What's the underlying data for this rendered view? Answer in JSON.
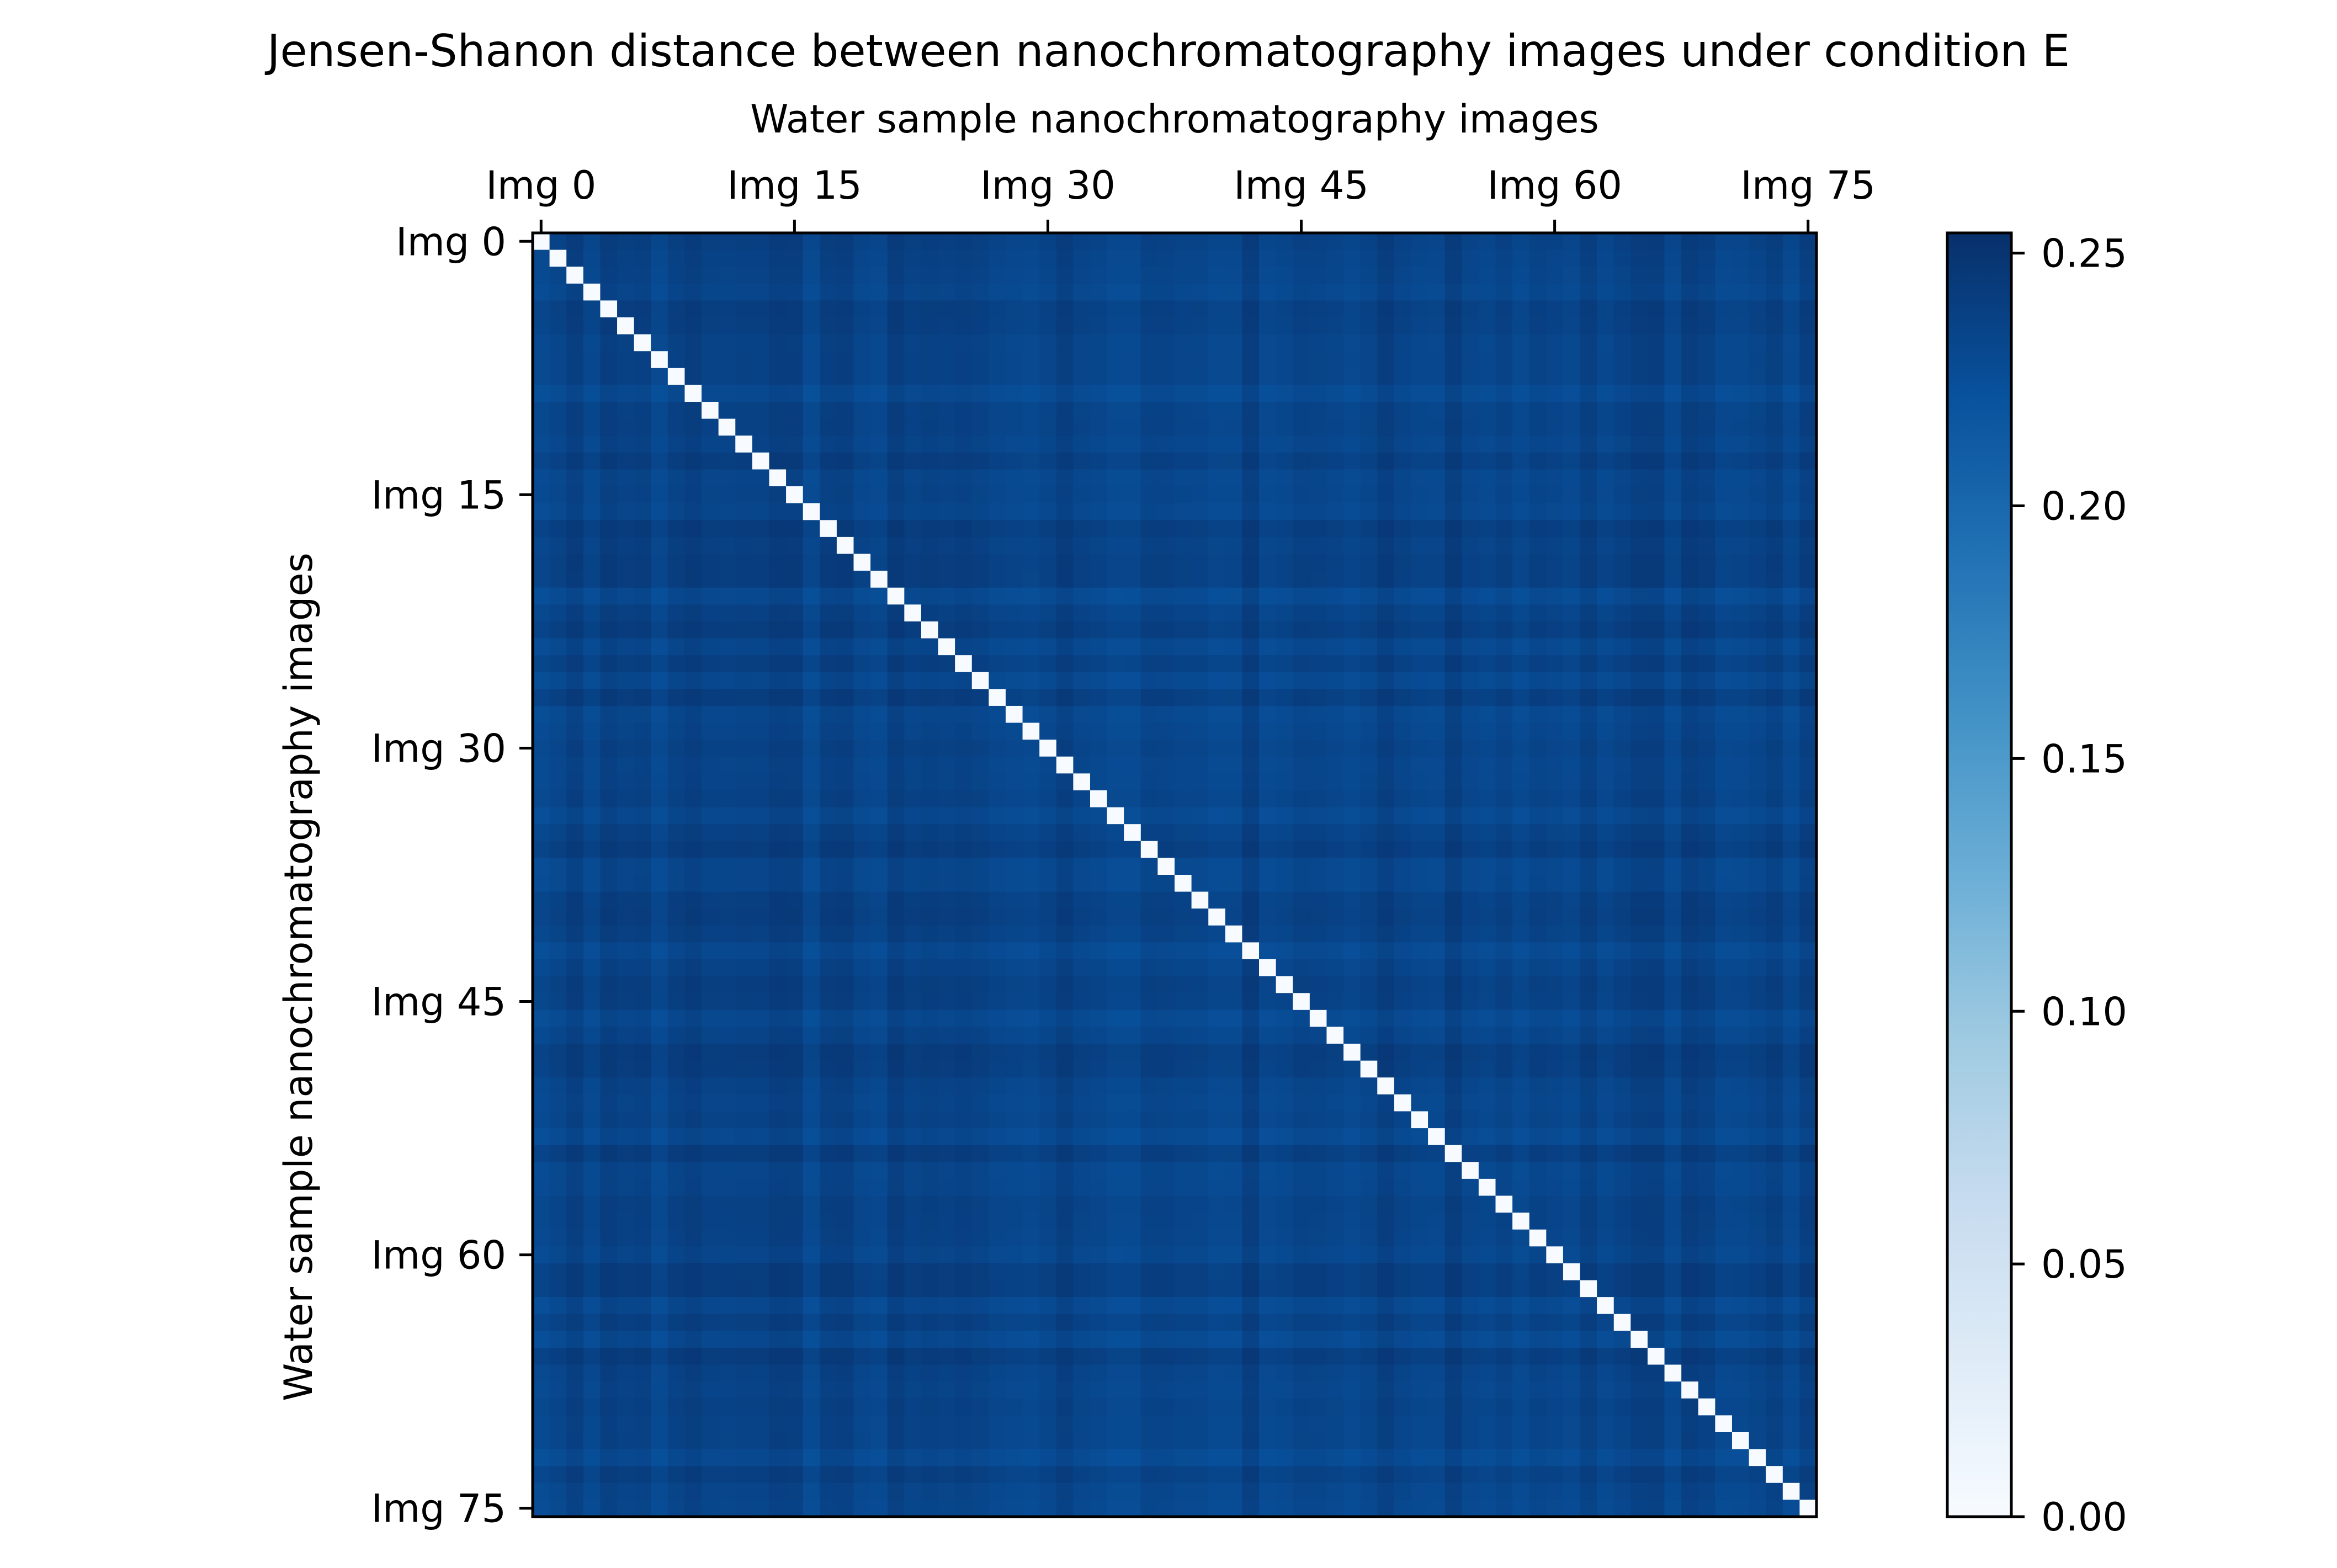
{
  "chart_data": {
    "type": "heatmap",
    "title": "Jensen-Shanon distance between nanochromatography images under condition  E",
    "xlabel": "Water sample nanochromatography images",
    "ylabel": "Water sample nanochromatography images",
    "size": 76,
    "x_ticks": [
      {
        "index": 0,
        "label": "Img 0"
      },
      {
        "index": 15,
        "label": "Img 15"
      },
      {
        "index": 30,
        "label": "Img 30"
      },
      {
        "index": 45,
        "label": "Img 45"
      },
      {
        "index": 60,
        "label": "Img 60"
      },
      {
        "index": 75,
        "label": "Img 75"
      }
    ],
    "y_ticks": [
      {
        "index": 0,
        "label": "Img 0"
      },
      {
        "index": 15,
        "label": "Img 15"
      },
      {
        "index": 30,
        "label": "Img 30"
      },
      {
        "index": 45,
        "label": "Img 45"
      },
      {
        "index": 60,
        "label": "Img 60"
      },
      {
        "index": 75,
        "label": "Img 75"
      }
    ],
    "x_axis_position": "top",
    "diagonal_value": 0.0,
    "base_off_diagonal_value": 0.235,
    "off_diagonal_range": [
      0.22,
      0.25
    ],
    "colormap": "Blues",
    "colorbar": {
      "vmin": 0.0,
      "vmax": 0.254,
      "ticks": [
        {
          "value": 0.0,
          "label": "0.00"
        },
        {
          "value": 0.05,
          "label": "0.05"
        },
        {
          "value": 0.1,
          "label": "0.10"
        },
        {
          "value": 0.15,
          "label": "0.15"
        },
        {
          "value": 0.2,
          "label": "0.20"
        },
        {
          "value": 0.25,
          "label": "0.25"
        }
      ]
    },
    "grid": false
  }
}
